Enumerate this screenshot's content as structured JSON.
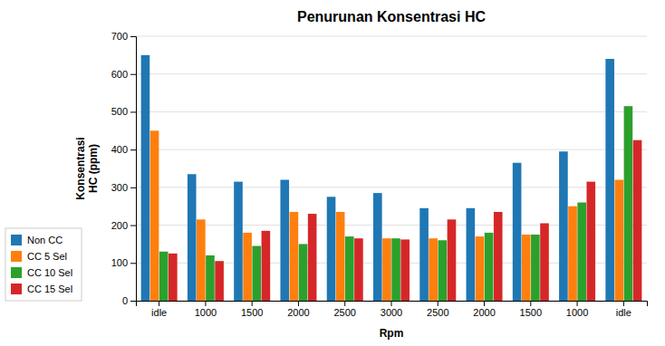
{
  "chart_data": {
    "type": "bar",
    "title": "Penurunan Konsentrasi HC",
    "x_label": "Rpm",
    "y_label": "Konsentrasi\nHC (ppm)",
    "categories": [
      "idle",
      "1000",
      "1500",
      "2000",
      "2500",
      "3000",
      "2500",
      "2000",
      "1500",
      "1000",
      "idle"
    ],
    "series": [
      {
        "name": "Non CC",
        "values": [
          650,
          335,
          315,
          320,
          275,
          285,
          245,
          245,
          365,
          395,
          640
        ]
      },
      {
        "name": "CC 5 Sel",
        "values": [
          450,
          215,
          180,
          235,
          235,
          165,
          165,
          170,
          175,
          250,
          320
        ]
      },
      {
        "name": "CC 10 Sel",
        "values": [
          130,
          120,
          145,
          150,
          170,
          165,
          160,
          180,
          175,
          260,
          515
        ]
      },
      {
        "name": "CC 15 Sel",
        "values": [
          125,
          105,
          185,
          230,
          165,
          162,
          215,
          235,
          205,
          315,
          425
        ]
      }
    ],
    "ylim": [
      0,
      700
    ],
    "yticks": [
      0,
      100,
      200,
      300,
      400,
      500,
      600,
      700
    ],
    "grid": true,
    "legend": "lower left"
  }
}
